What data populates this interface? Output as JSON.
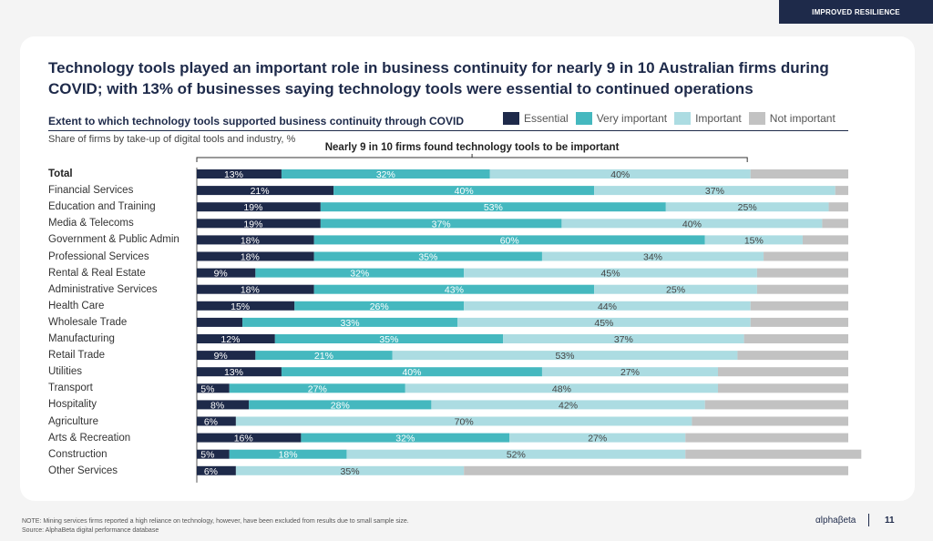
{
  "tag": "IMPROVED RESILIENCE",
  "headline": "Technology tools played an important role in business continuity for nearly 9 in 10 Australian firms during COVID; with 13% of businesses saying technology tools were essential to continued operations",
  "chart_data": {
    "type": "bar",
    "orientation": "horizontal-stacked-100",
    "title": "Extent to which technology tools supported business continuity through COVID",
    "subtitle": "Share of firms by take-up of digital tools and industry, %",
    "annotation": "Nearly 9 in 10 firms found technology tools to be important",
    "legend_position": "top-right",
    "categories": [
      "Total",
      "Financial Services",
      "Education and Training",
      "Media & Telecoms",
      "Government & Public Admin",
      "Professional Services",
      "Rental & Real Estate",
      "Administrative Services",
      "Health Care",
      "Wholesale Trade",
      "Manufacturing",
      "Retail Trade",
      "Utilities",
      "Transport",
      "Hospitality",
      "Agriculture",
      "Arts & Recreation",
      "Construction",
      "Other Services"
    ],
    "series": [
      {
        "name": "Essential",
        "color": "#1e2a4a",
        "values": [
          13,
          21,
          19,
          19,
          18,
          18,
          9,
          18,
          15,
          7,
          12,
          9,
          13,
          5,
          8,
          6,
          16,
          5,
          6
        ],
        "labels": [
          "13%",
          "21%",
          "19%",
          "19%",
          "18%",
          "18%",
          "9%",
          "18%",
          "15%",
          "",
          "12%",
          "9%",
          "13%",
          "5%",
          "8%",
          "6%",
          "16%",
          "5%",
          "6%"
        ]
      },
      {
        "name": "Very important",
        "color": "#45b8bf",
        "values": [
          32,
          40,
          53,
          37,
          60,
          35,
          32,
          43,
          26,
          33,
          35,
          21,
          40,
          27,
          28,
          0,
          32,
          18,
          0
        ],
        "labels": [
          "32%",
          "40%",
          "53%",
          "37%",
          "60%",
          "35%",
          "32%",
          "43%",
          "26%",
          "33%",
          "35%",
          "21%",
          "40%",
          "27%",
          "28%",
          "",
          "32%",
          "18%",
          ""
        ]
      },
      {
        "name": "Important",
        "color": "#acdce2",
        "values": [
          40,
          37,
          25,
          40,
          15,
          34,
          45,
          25,
          44,
          45,
          37,
          53,
          27,
          48,
          42,
          70,
          27,
          52,
          35
        ],
        "labels": [
          "40%",
          "37%",
          "25%",
          "40%",
          "15%",
          "34%",
          "45%",
          "25%",
          "44%",
          "45%",
          "37%",
          "53%",
          "27%",
          "48%",
          "42%",
          "70%",
          "27%",
          "52%",
          "35%"
        ]
      },
      {
        "name": "Not important",
        "color": "#c2c2c2",
        "values": [
          15,
          2,
          3,
          4,
          7,
          13,
          14,
          14,
          15,
          15,
          16,
          17,
          20,
          20,
          22,
          24,
          25,
          27,
          59
        ],
        "labels": []
      }
    ],
    "xlim": [
      0,
      100
    ]
  },
  "footer": {
    "note": "NOTE: Mining services firms reported a high reliance on technology, however, have been excluded from results due to small sample size.",
    "source": "Source: AlphaBeta digital performance database",
    "logo": "αlphaβeta",
    "page": "11"
  }
}
